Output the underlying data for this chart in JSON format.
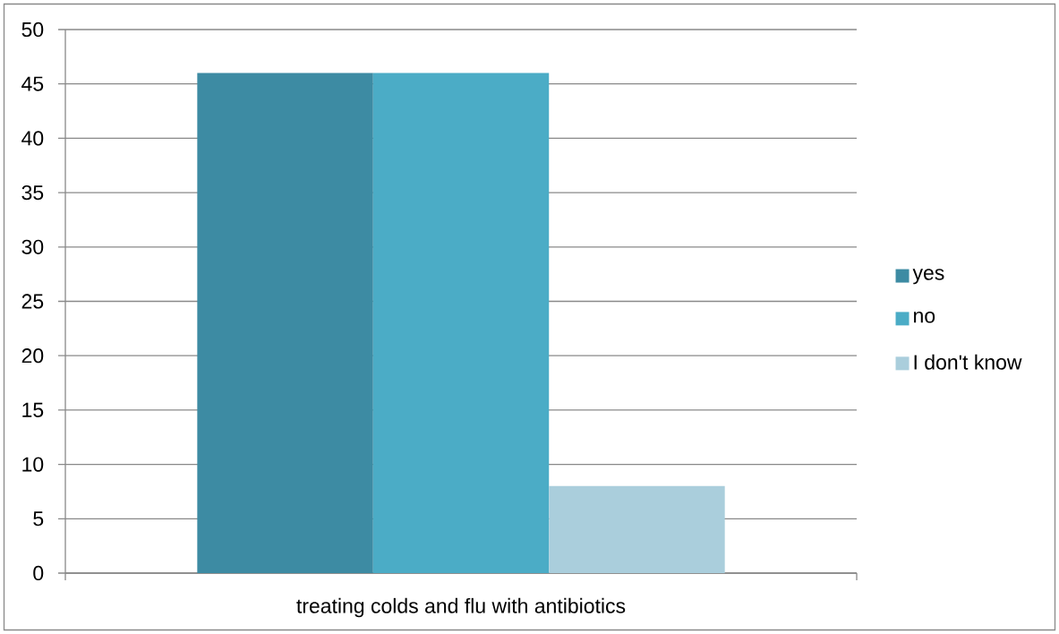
{
  "chart_data": {
    "type": "bar",
    "categories": [
      "treating colds and flu with antibiotics"
    ],
    "series": [
      {
        "name": "yes",
        "color": "#3d8ba3",
        "values": [
          46
        ]
      },
      {
        "name": "no",
        "color": "#4bacc6",
        "values": [
          46
        ]
      },
      {
        "name": "I don't know",
        "color": "#aacedc",
        "values": [
          8
        ]
      }
    ],
    "ylim": [
      0,
      50
    ],
    "yticks": [
      0,
      5,
      10,
      15,
      20,
      25,
      30,
      35,
      40,
      45,
      50
    ],
    "grid": "y",
    "legend": "right"
  }
}
